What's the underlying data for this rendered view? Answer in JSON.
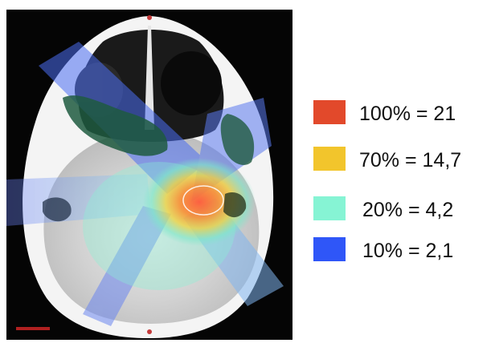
{
  "colors": {
    "isodose_100": "#e2492b",
    "isodose_70": "#f2c52c",
    "isodose_20": "#86f4d4",
    "isodose_10": "#2f56f8"
  },
  "legend": {
    "items": [
      {
        "label": "100% = 21",
        "color": "#e2492b"
      },
      {
        "label": "70% = 14,7",
        "color": "#f2c52c"
      },
      {
        "label": "20% = 4,2",
        "color": "#86f4d4"
      },
      {
        "label": "10% = 2,1",
        "color": "#2f56f8"
      }
    ]
  }
}
